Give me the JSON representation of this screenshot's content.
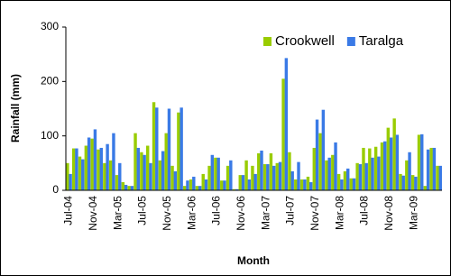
{
  "chart_data": {
    "type": "bar",
    "x_label": "Month",
    "y_label": "Rainfall (mm)",
    "categories": [
      "Jul-04",
      null,
      null,
      null,
      "Nov-04",
      null,
      null,
      null,
      "Mar-05",
      null,
      null,
      null,
      "Jul-05",
      null,
      null,
      null,
      "Nov-05",
      null,
      null,
      null,
      "Mar-06",
      null,
      null,
      null,
      "Jul-06",
      null,
      null,
      null,
      "Nov-06",
      null,
      null,
      null,
      "Mar-07",
      null,
      null,
      null,
      "Jul-07",
      null,
      null,
      null,
      "Nov-07",
      null,
      null,
      null,
      "Mar-08",
      null,
      null,
      null,
      "Jul-08",
      null,
      null,
      null,
      "Nov-08",
      null,
      null,
      null,
      "Mar-09",
      null,
      null,
      null,
      null
    ],
    "series": [
      {
        "name": "Crookwell",
        "color": "#99cc00",
        "values": [
          50,
          77,
          62,
          82,
          95,
          75,
          50,
          55,
          28,
          15,
          8,
          105,
          70,
          82,
          162,
          55,
          105,
          45,
          143,
          8,
          20,
          8,
          30,
          45,
          60,
          18,
          45,
          2,
          28,
          55,
          45,
          68,
          48,
          68,
          50,
          205,
          70,
          20,
          20,
          25,
          78,
          105,
          55,
          65,
          30,
          35,
          22,
          50,
          78,
          77,
          80,
          88,
          115,
          132,
          30,
          55,
          28,
          102,
          8,
          78,
          45
        ]
      },
      {
        "name": "Taralga",
        "color": "#3a7ae6",
        "values": [
          30,
          77,
          57,
          97,
          112,
          78,
          85,
          105,
          50,
          10,
          8,
          78,
          65,
          50,
          152,
          72,
          150,
          35,
          152,
          18,
          25,
          8,
          20,
          65,
          60,
          18,
          55,
          2,
          28,
          20,
          30,
          73,
          48,
          45,
          52,
          243,
          35,
          52,
          20,
          15,
          130,
          148,
          60,
          88,
          20,
          40,
          22,
          48,
          50,
          60,
          62,
          90,
          97,
          102,
          27,
          70,
          25,
          103,
          75,
          78,
          45
        ]
      }
    ],
    "ylim": [
      0,
      300
    ],
    "yticks": [
      0,
      100,
      200,
      300
    ],
    "grid": false,
    "legend": "top-right"
  }
}
